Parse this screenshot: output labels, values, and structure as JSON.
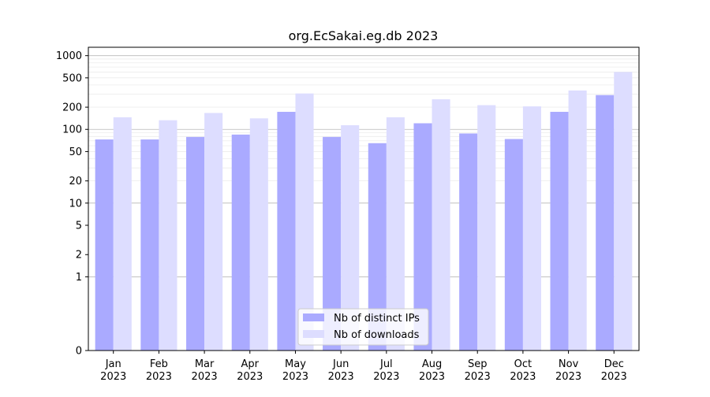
{
  "chart_data": {
    "type": "bar",
    "title": "org.EcSakai.eg.db 2023",
    "xlabel": "",
    "ylabel": "",
    "y_scale": "symlog",
    "ylim": [
      0,
      1300
    ],
    "y_ticks": [
      {
        "value": 0,
        "label": "0"
      },
      {
        "value": 1,
        "label": "1"
      },
      {
        "value": 2,
        "label": "2"
      },
      {
        "value": 5,
        "label": "5"
      },
      {
        "value": 10,
        "label": "10"
      },
      {
        "value": 20,
        "label": "20"
      },
      {
        "value": 50,
        "label": "50"
      },
      {
        "value": 100,
        "label": "100"
      },
      {
        "value": 200,
        "label": "200"
      },
      {
        "value": 500,
        "label": "500"
      },
      {
        "value": 1000,
        "label": "1000"
      }
    ],
    "categories": [
      {
        "month": "Jan",
        "year": "2023"
      },
      {
        "month": "Feb",
        "year": "2023"
      },
      {
        "month": "Mar",
        "year": "2023"
      },
      {
        "month": "Apr",
        "year": "2023"
      },
      {
        "month": "May",
        "year": "2023"
      },
      {
        "month": "Jun",
        "year": "2023"
      },
      {
        "month": "Jul",
        "year": "2023"
      },
      {
        "month": "Aug",
        "year": "2023"
      },
      {
        "month": "Sep",
        "year": "2023"
      },
      {
        "month": "Oct",
        "year": "2023"
      },
      {
        "month": "Nov",
        "year": "2023"
      },
      {
        "month": "Dec",
        "year": "2023"
      }
    ],
    "series": [
      {
        "name": "Nb of distinct IPs",
        "color": "#aaaaff",
        "values": [
          73,
          73,
          79,
          85,
          173,
          79,
          65,
          121,
          88,
          74,
          173,
          292
        ]
      },
      {
        "name": "Nb of downloads",
        "color": "#ddddff",
        "values": [
          146,
          133,
          167,
          141,
          307,
          114,
          146,
          256,
          213,
          205,
          337,
          600
        ]
      }
    ],
    "grid": true,
    "legend_position": "bottom-center"
  }
}
